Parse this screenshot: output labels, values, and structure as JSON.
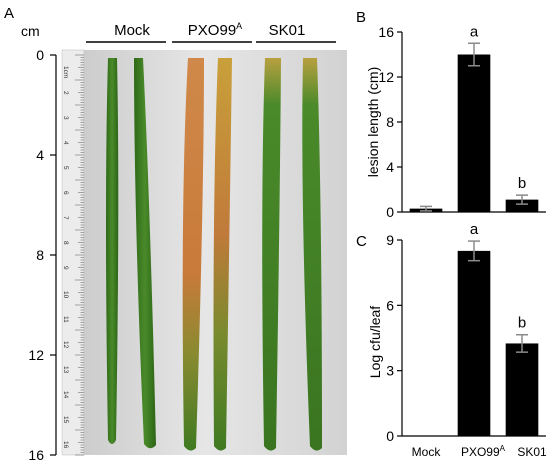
{
  "panel_a": {
    "letter": "A",
    "unit": "cm",
    "ticks": [
      "0",
      "4",
      "8",
      "12",
      "16"
    ],
    "ticks_range": [
      0,
      16
    ],
    "groups": [
      "Mock",
      "PXO99",
      "SK01"
    ],
    "group_superscript": "A",
    "ruler_numbers": [
      "1cm",
      "2",
      "3",
      "4",
      "5",
      "6",
      "7",
      "8",
      "9",
      "10",
      "11",
      "12",
      "13",
      "14",
      "15",
      "16"
    ],
    "colors": {
      "leaf_green": "#3f7a22",
      "lesion_orange": "#d98a3a",
      "background": "#d9d9d9"
    }
  },
  "chart_data": [
    {
      "type": "bar",
      "panel": "B",
      "categories": [
        "Mock",
        "PXO99A",
        "SK01"
      ],
      "values": [
        0.3,
        14.0,
        1.1
      ],
      "errors": [
        0.2,
        1.0,
        0.4
      ],
      "significance": [
        "",
        "a",
        "b"
      ],
      "xlabel": "",
      "ylabel": "lesion length (cm)",
      "ylim": [
        0,
        16
      ],
      "yticks": [
        "0",
        "4",
        "8",
        "12",
        "16"
      ],
      "grid": false,
      "bar_color": "#000000"
    },
    {
      "type": "bar",
      "panel": "C",
      "categories": [
        "Mock",
        "PXO99",
        "SK01"
      ],
      "category_superscripts": [
        "",
        "A",
        ""
      ],
      "values": [
        0,
        8.5,
        4.25
      ],
      "errors": [
        0,
        0.45,
        0.4
      ],
      "significance": [
        "",
        "a",
        "b"
      ],
      "xlabel": "",
      "ylabel": "Log cfu/leaf",
      "ylim": [
        0,
        9
      ],
      "yticks": [
        "0",
        "3",
        "6",
        "9"
      ],
      "grid": false,
      "bar_color": "#000000"
    }
  ]
}
